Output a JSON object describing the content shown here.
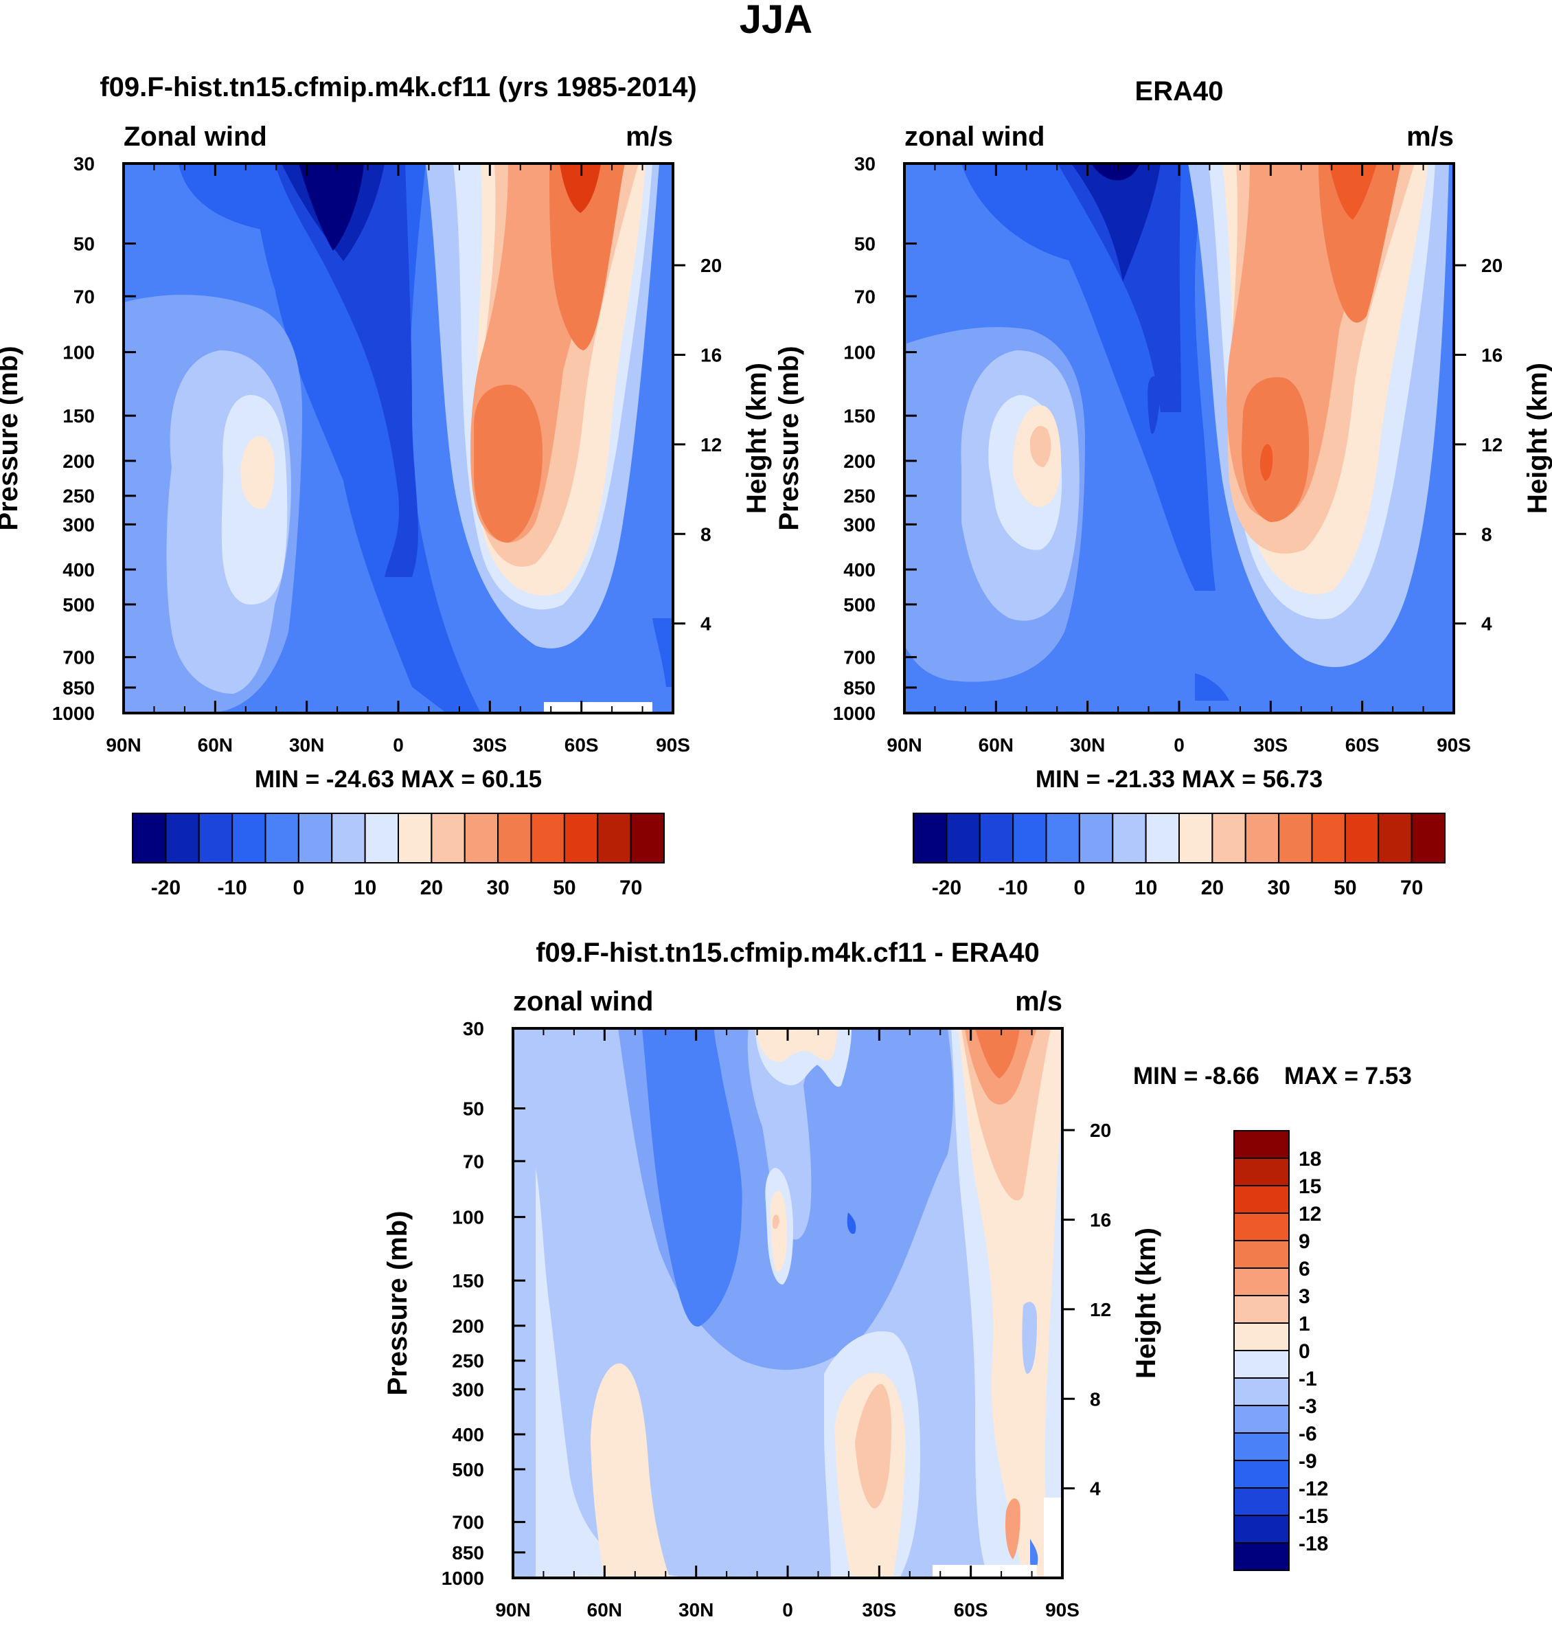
{
  "chart_data": {
    "type": "contour",
    "title": "JJA",
    "panels": [
      {
        "title": "f09.F-hist.tn15.cfmip.m4k.cf11 (yrs 1985-2014)",
        "left_label": "Zonal wind",
        "right_label": "m/s",
        "ylabel": "Pressure (mb)",
        "ylabel_right": "Height (km)",
        "x_ticks": [
          "90N",
          "60N",
          "30N",
          "0",
          "30S",
          "60S",
          "90S"
        ],
        "y_ticks": [
          "30",
          "50",
          "70",
          "100",
          "150",
          "200",
          "250",
          "300",
          "400",
          "500",
          "700",
          "850",
          "1000"
        ],
        "height_ticks": [
          "20",
          "16",
          "12",
          "8",
          "4"
        ],
        "stats": "MIN = -24.63  MAX =  60.15",
        "colorbar_labels": [
          "-20",
          "-10",
          "0",
          "10",
          "20",
          "30",
          "50",
          "70"
        ]
      },
      {
        "title": "ERA40",
        "left_label": "zonal wind",
        "right_label": "m/s",
        "ylabel": "Pressure (mb)",
        "ylabel_right": "Height (km)",
        "x_ticks": [
          "90N",
          "60N",
          "30N",
          "0",
          "30S",
          "60S",
          "90S"
        ],
        "y_ticks": [
          "30",
          "50",
          "70",
          "100",
          "150",
          "200",
          "250",
          "300",
          "400",
          "500",
          "700",
          "850",
          "1000"
        ],
        "height_ticks": [
          "20",
          "16",
          "12",
          "8",
          "4"
        ],
        "stats": "MIN = -21.33  MAX =  56.73",
        "colorbar_labels": [
          "-20",
          "-10",
          "0",
          "10",
          "20",
          "30",
          "50",
          "70"
        ]
      },
      {
        "title": "f09.F-hist.tn15.cfmip.m4k.cf11 - ERA40",
        "left_label": "zonal wind",
        "right_label": "m/s",
        "ylabel": "Pressure (mb)",
        "ylabel_right": "Height (km)",
        "x_ticks": [
          "90N",
          "60N",
          "30N",
          "0",
          "30S",
          "60S",
          "90S"
        ],
        "y_ticks": [
          "30",
          "50",
          "70",
          "100",
          "150",
          "200",
          "250",
          "300",
          "400",
          "500",
          "700",
          "850",
          "1000"
        ],
        "height_ticks": [
          "20",
          "16",
          "12",
          "8",
          "4"
        ],
        "stats_min": "MIN =  -8.66",
        "stats_max": "MAX =    7.53",
        "colorbar_labels": [
          "18",
          "15",
          "12",
          "9",
          "6",
          "3",
          "1",
          "0",
          "-1",
          "-3",
          "-6",
          "-9",
          "-12",
          "-15",
          "-18"
        ]
      }
    ],
    "colormap_main": [
      "#00007f",
      "#0a24b4",
      "#1c45dc",
      "#2a63f2",
      "#4a80f8",
      "#7ea4fa",
      "#b0c8fb",
      "#dce8fd",
      "#fde8d6",
      "#fbc7ab",
      "#f7a07a",
      "#f27c4c",
      "#ee5a28",
      "#e03a10",
      "#b82006",
      "#860000"
    ],
    "colormap_diff": [
      "#860000",
      "#b82006",
      "#e03a10",
      "#ee5a28",
      "#f27c4c",
      "#f7a07a",
      "#fbc7ab",
      "#fde8d6",
      "#dce8fd",
      "#b0c8fb",
      "#7ea4fa",
      "#4a80f8",
      "#2a63f2",
      "#1c45dc",
      "#0a24b4",
      "#00007f"
    ]
  }
}
